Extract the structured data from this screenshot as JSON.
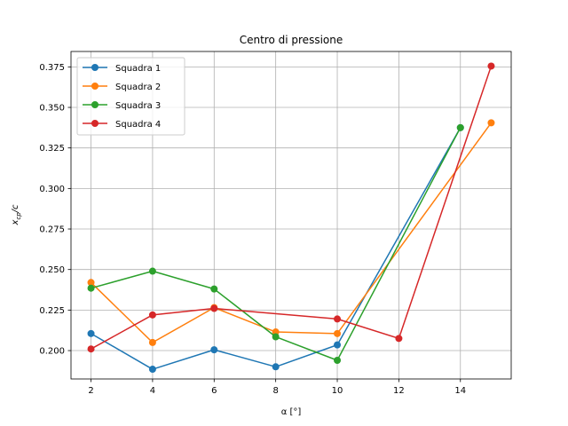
{
  "chart_data": {
    "type": "line",
    "title": "Centro di pressione",
    "xlabel": "α [°]",
    "ylabel_main": "x",
    "ylabel_sub": "cp",
    "ylabel_tail": "/c",
    "xlim": [
      1.35,
      15.65
    ],
    "ylim": [
      0.1825,
      0.3845
    ],
    "xticks": [
      2,
      4,
      6,
      8,
      10,
      12,
      14
    ],
    "yticks": [
      0.2,
      0.225,
      0.25,
      0.275,
      0.3,
      0.325,
      0.35,
      0.375
    ],
    "grid": true,
    "legend_position": "upper-left",
    "series": [
      {
        "name": "Squadra 1",
        "color": "#1f77b4",
        "x": [
          2,
          4,
          6,
          8,
          10,
          14
        ],
        "y": [
          0.2105,
          0.1885,
          0.2005,
          0.19,
          0.2035,
          0.3375
        ]
      },
      {
        "name": "Squadra 2",
        "color": "#ff7f0e",
        "x": [
          2,
          4,
          6,
          8,
          10,
          15
        ],
        "y": [
          0.242,
          0.205,
          0.2265,
          0.2115,
          0.2105,
          0.3405
        ]
      },
      {
        "name": "Squadra 3",
        "color": "#2ca02c",
        "x": [
          2,
          4,
          6,
          8,
          10,
          14
        ],
        "y": [
          0.2385,
          0.249,
          0.238,
          0.2085,
          0.194,
          0.3375
        ]
      },
      {
        "name": "Squadra 4",
        "color": "#d62728",
        "x": [
          2,
          4,
          6,
          10,
          12,
          15
        ],
        "y": [
          0.201,
          0.222,
          0.226,
          0.2195,
          0.2075,
          0.3755
        ]
      }
    ]
  }
}
